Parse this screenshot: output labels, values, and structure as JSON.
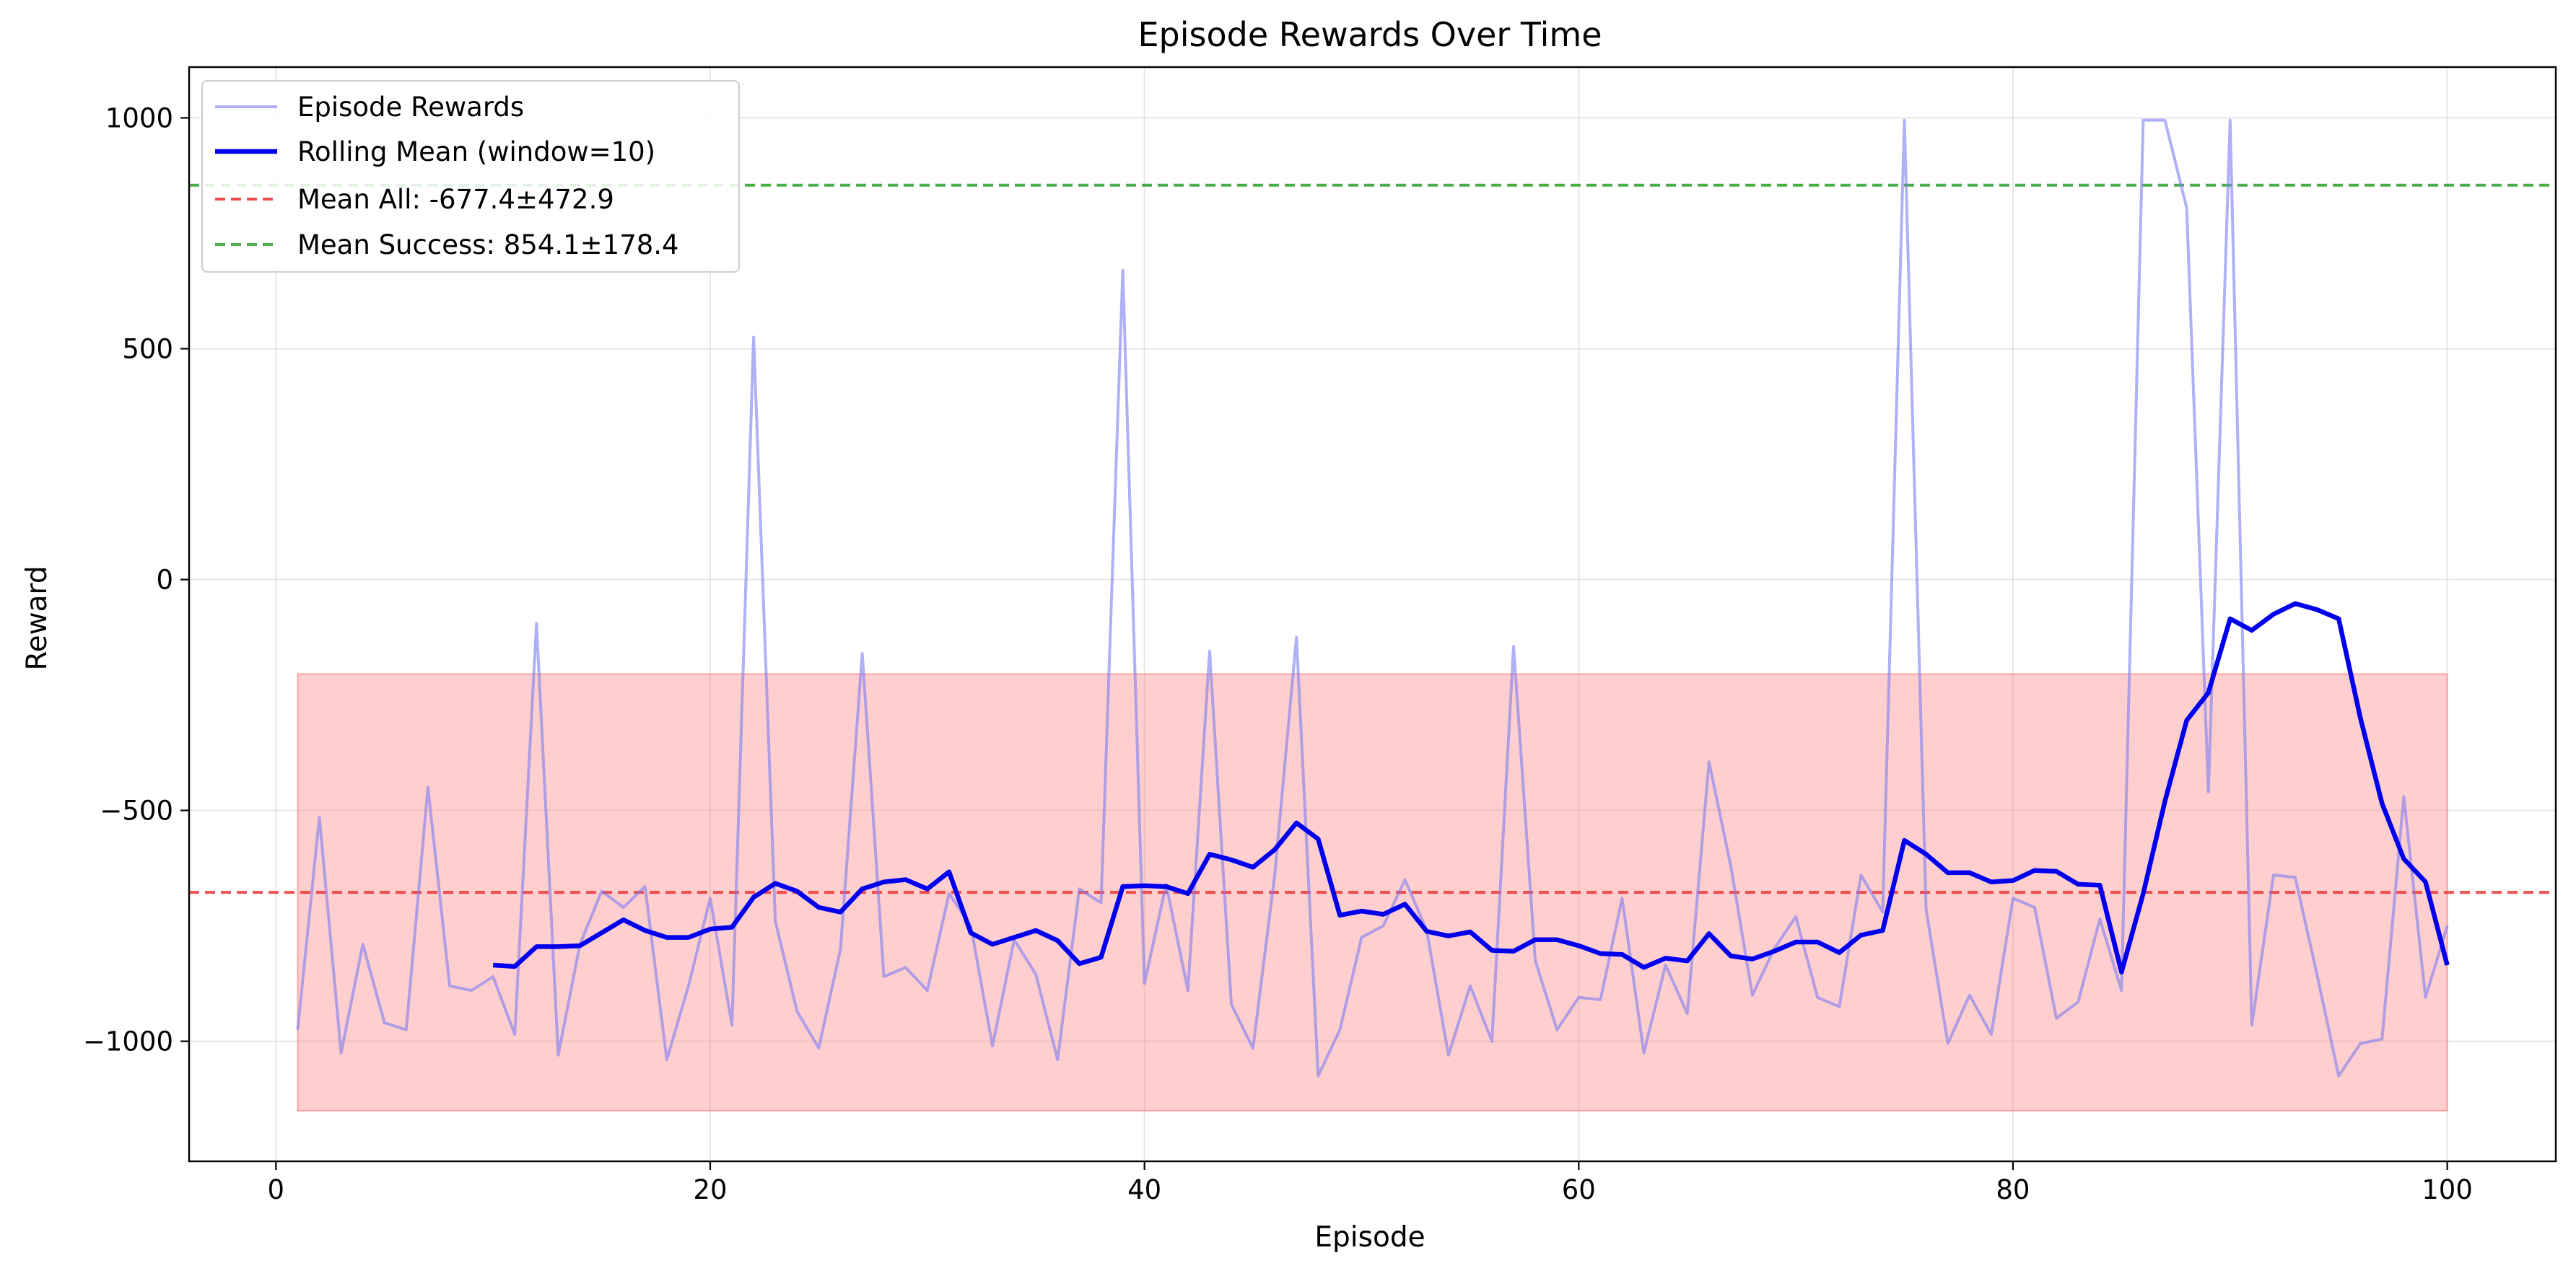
{
  "chart_data": {
    "type": "line",
    "title": "Episode Rewards Over Time",
    "xlabel": "Episode",
    "ylabel": "Reward",
    "xlim": [
      -4,
      105
    ],
    "ylim": [
      -1260,
      1110
    ],
    "x_ticks": [
      0,
      20,
      40,
      60,
      80,
      100
    ],
    "y_ticks": [
      -1000,
      -500,
      0,
      500,
      1000
    ],
    "x_tick_labels": [
      "0",
      "20",
      "40",
      "60",
      "80",
      "100"
    ],
    "y_tick_labels": [
      "−1000",
      "−500",
      "0",
      "500",
      "1000"
    ],
    "grid": true,
    "legend_position": "top-left",
    "series": [
      {
        "name": "Episode Rewards",
        "color": "#7b7bf2",
        "style": "solid-thin",
        "x": [
          1,
          2,
          3,
          4,
          5,
          6,
          7,
          8,
          9,
          10,
          11,
          12,
          13,
          14,
          15,
          16,
          17,
          18,
          19,
          20,
          21,
          22,
          23,
          24,
          25,
          26,
          27,
          28,
          29,
          30,
          31,
          32,
          33,
          34,
          35,
          36,
          37,
          38,
          39,
          40,
          41,
          42,
          43,
          44,
          45,
          46,
          47,
          48,
          49,
          50,
          51,
          52,
          53,
          54,
          55,
          56,
          57,
          58,
          59,
          60,
          61,
          62,
          63,
          64,
          65,
          66,
          67,
          68,
          69,
          70,
          71,
          72,
          73,
          74,
          75,
          76,
          77,
          78,
          79,
          80,
          81,
          82,
          83,
          84,
          85,
          86,
          87,
          88,
          89,
          90,
          91,
          92,
          93,
          94,
          95,
          96,
          97,
          98,
          99,
          100
        ],
        "y": [
          -975,
          -515,
          -1025,
          -790,
          -960,
          -975,
          -450,
          -880,
          -890,
          -860,
          -985,
          -95,
          -1030,
          -790,
          -675,
          -710,
          -665,
          -1040,
          -880,
          -690,
          -965,
          525,
          -740,
          -935,
          -1015,
          -800,
          -160,
          -860,
          -840,
          -890,
          -680,
          -750,
          -1010,
          -780,
          -855,
          -1040,
          -670,
          -700,
          670,
          -875,
          -660,
          -890,
          -155,
          -920,
          -1015,
          -640,
          -125,
          -1075,
          -975,
          -775,
          -750,
          -650,
          -760,
          -1030,
          -880,
          -1000,
          -145,
          -825,
          -975,
          -905,
          -910,
          -690,
          -1025,
          -835,
          -940,
          -395,
          -620,
          -900,
          -800,
          -730,
          -905,
          -925,
          -640,
          -720,
          995,
          -715,
          -1005,
          -900,
          -985,
          -690,
          -710,
          -950,
          -915,
          -735,
          -890,
          995,
          995,
          805,
          -460,
          995,
          -965,
          -640,
          -645,
          -855,
          -1075,
          -1005,
          -995,
          -470,
          -905,
          -750
        ]
      },
      {
        "name": "Rolling Mean (window=10)",
        "color": "#0000ee",
        "style": "solid-thick",
        "x": [
          10,
          11,
          12,
          13,
          14,
          15,
          16,
          17,
          18,
          19,
          20,
          21,
          22,
          23,
          24,
          25,
          26,
          27,
          28,
          29,
          30,
          31,
          32,
          33,
          34,
          35,
          36,
          37,
          38,
          39,
          40,
          41,
          42,
          43,
          44,
          45,
          46,
          47,
          48,
          49,
          50,
          51,
          52,
          53,
          54,
          55,
          56,
          57,
          58,
          59,
          60,
          61,
          62,
          63,
          64,
          65,
          66,
          67,
          68,
          69,
          70,
          71,
          72,
          73,
          74,
          75,
          76,
          77,
          78,
          79,
          80,
          81,
          82,
          83,
          84,
          85,
          86,
          87,
          88,
          89,
          90,
          91,
          92,
          93,
          94,
          95,
          96,
          97,
          98,
          99,
          100
        ],
        "y": [
          -835,
          -838,
          -795,
          -795,
          -793,
          -765,
          -737,
          -760,
          -775,
          -775,
          -757,
          -753,
          -688,
          -658,
          -675,
          -710,
          -720,
          -670,
          -655,
          -650,
          -670,
          -633,
          -765,
          -790,
          -775,
          -760,
          -782,
          -832,
          -818,
          -665,
          -663,
          -665,
          -680,
          -595,
          -607,
          -623,
          -585,
          -527,
          -562,
          -727,
          -718,
          -725,
          -703,
          -762,
          -772,
          -763,
          -803,
          -805,
          -780,
          -780,
          -793,
          -810,
          -812,
          -840,
          -820,
          -826,
          -767,
          -815,
          -822,
          -805,
          -785,
          -785,
          -808,
          -770,
          -760,
          -565,
          -595,
          -635,
          -635,
          -655,
          -652,
          -630,
          -632,
          -660,
          -662,
          -850,
          -680,
          -480,
          -305,
          -245,
          -85,
          -110,
          -75,
          -52,
          -65,
          -85,
          -300,
          -485,
          -605,
          -655,
          -835
        ]
      }
    ],
    "reference_lines": [
      {
        "name": "Mean All: -677.4±472.9",
        "y": -677.4,
        "color": "#ee3333",
        "style": "dashed"
      },
      {
        "name": "Mean Success: 854.1±178.4",
        "y": 854.1,
        "color": "#2ca02c",
        "style": "dashed"
      }
    ],
    "band": {
      "x": [
        1,
        100
      ],
      "y": [
        -1150.3,
        -204.5
      ],
      "color": "#ff8888",
      "opacity": 0.4
    }
  }
}
